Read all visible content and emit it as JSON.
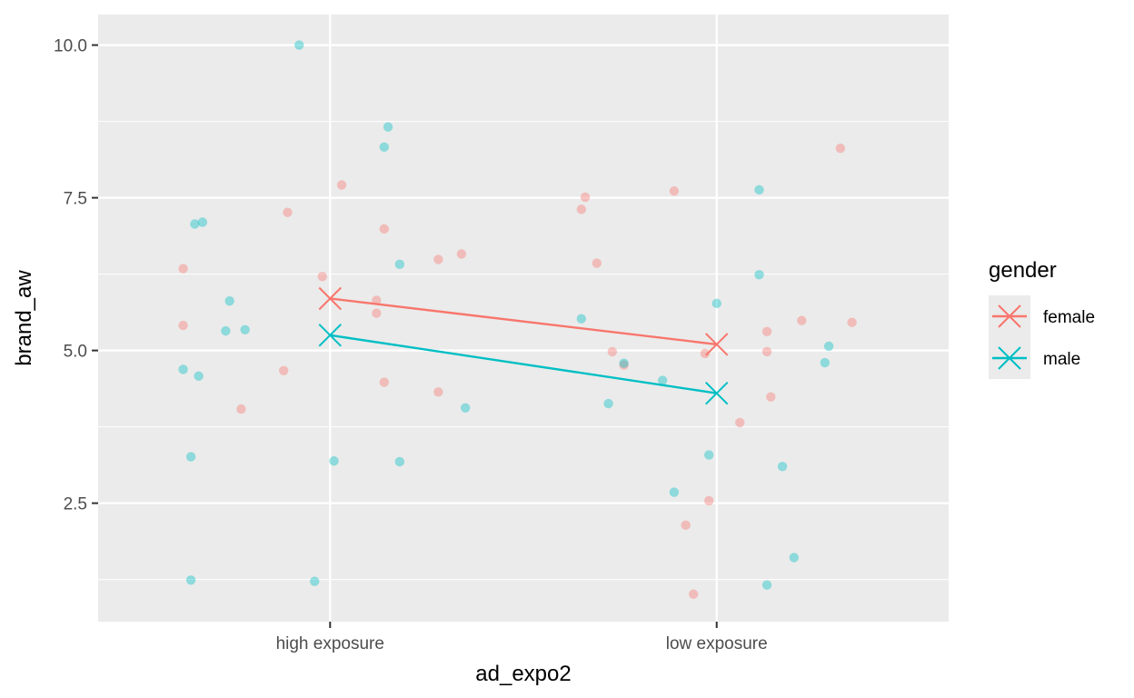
{
  "chart_data": {
    "type": "scatter",
    "title": "",
    "xlabel": "ad_expo2",
    "ylabel": "brand_aw",
    "categories": [
      "high exposure",
      "low exposure"
    ],
    "yticks": [
      "2.5",
      "5.0",
      "7.5",
      "10.0"
    ],
    "ylim": [
      0.56,
      10.5
    ],
    "grid": true,
    "legend": {
      "title": "gender",
      "position": "right"
    },
    "series": [
      {
        "name": "female",
        "color": "#F8766D",
        "means": [
          5.85,
          5.1
        ],
        "points": [
          [
            0.62,
            6.34
          ],
          [
            0.62,
            5.41
          ],
          [
            0.77,
            4.04
          ],
          [
            0.88,
            4.67
          ],
          [
            0.89,
            7.26
          ],
          [
            0.98,
            6.21
          ],
          [
            1.03,
            7.71
          ],
          [
            1.12,
            5.82
          ],
          [
            1.12,
            5.61
          ],
          [
            1.14,
            6.99
          ],
          [
            1.14,
            4.48
          ],
          [
            1.28,
            6.49
          ],
          [
            1.28,
            4.32
          ],
          [
            1.34,
            6.58
          ],
          [
            1.65,
            7.31
          ],
          [
            1.66,
            7.51
          ],
          [
            1.69,
            6.43
          ],
          [
            1.73,
            4.98
          ],
          [
            1.76,
            4.76
          ],
          [
            1.89,
            7.61
          ],
          [
            1.92,
            2.14
          ],
          [
            1.94,
            1.01
          ],
          [
            1.97,
            4.95
          ],
          [
            1.98,
            2.54
          ],
          [
            2.06,
            3.82
          ],
          [
            2.13,
            5.31
          ],
          [
            2.13,
            4.98
          ],
          [
            2.14,
            4.24
          ],
          [
            2.22,
            5.49
          ],
          [
            2.32,
            8.31
          ],
          [
            2.35,
            5.46
          ]
        ]
      },
      {
        "name": "male",
        "color": "#00BFC4",
        "means": [
          5.25,
          4.3
        ],
        "points": [
          [
            0.62,
            4.69
          ],
          [
            0.64,
            3.26
          ],
          [
            0.64,
            1.24
          ],
          [
            0.65,
            7.07
          ],
          [
            0.66,
            4.58
          ],
          [
            0.67,
            7.1
          ],
          [
            0.73,
            5.32
          ],
          [
            0.74,
            5.81
          ],
          [
            0.78,
            5.34
          ],
          [
            0.92,
            10.0
          ],
          [
            0.96,
            1.22
          ],
          [
            1.01,
            3.19
          ],
          [
            1.14,
            8.33
          ],
          [
            1.15,
            8.66
          ],
          [
            1.18,
            6.41
          ],
          [
            1.18,
            3.18
          ],
          [
            1.35,
            4.06
          ],
          [
            1.65,
            5.52
          ],
          [
            1.72,
            4.13
          ],
          [
            1.76,
            4.79
          ],
          [
            1.86,
            4.51
          ],
          [
            1.89,
            2.68
          ],
          [
            1.98,
            3.29
          ],
          [
            2.0,
            5.77
          ],
          [
            2.11,
            7.63
          ],
          [
            2.11,
            6.24
          ],
          [
            2.13,
            1.16
          ],
          [
            2.17,
            3.1
          ],
          [
            2.2,
            1.61
          ],
          [
            2.28,
            4.8
          ],
          [
            2.29,
            5.07
          ]
        ]
      }
    ]
  }
}
